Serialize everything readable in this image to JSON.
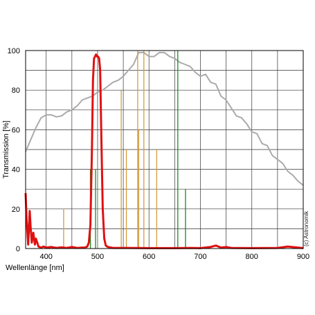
{
  "chart_data": {
    "type": "line",
    "title": "",
    "xlabel": "Wellenlänge [nm]",
    "ylabel": "Transmission [%]",
    "xlim": [
      360,
      900
    ],
    "ylim": [
      0,
      100
    ],
    "x_ticks": [
      400,
      500,
      600,
      700,
      800,
      900
    ],
    "y_ticks": [
      0,
      20,
      40,
      60,
      80,
      100
    ],
    "grid": true,
    "credit": "(c) Astronomik",
    "colors": {
      "filter": "#e01010",
      "reference": "#aaaaaa",
      "lines_green": "#1a8a1a",
      "lines_orange": "#d89a3a",
      "grid": "#333333"
    },
    "series": [
      {
        "role": "reference",
        "x": [
          360,
          370,
          380,
          390,
          400,
          410,
          420,
          430,
          440,
          450,
          460,
          470,
          480,
          490,
          500,
          510,
          520,
          530,
          540,
          550,
          560,
          570,
          580,
          590,
          600,
          610,
          620,
          630,
          640,
          650,
          660,
          670,
          680,
          690,
          700,
          710,
          720,
          730,
          740,
          750,
          760,
          770,
          780,
          790,
          800,
          810,
          820,
          830,
          840,
          850,
          860,
          870,
          880,
          890,
          900
        ],
        "y": [
          49,
          55,
          61,
          66,
          67.5,
          67.5,
          66.5,
          67,
          69,
          70,
          72,
          75,
          76,
          77,
          79,
          80,
          82,
          84,
          85,
          87,
          90,
          93,
          99,
          99,
          97,
          97,
          99,
          99,
          97,
          96,
          94,
          93,
          92,
          89,
          87,
          88,
          84,
          83,
          77,
          75,
          71,
          67,
          66,
          63,
          59,
          58,
          53,
          52,
          47,
          45,
          43,
          39,
          37,
          34,
          32
        ]
      },
      {
        "role": "filter",
        "x": [
          360,
          362,
          365,
          368,
          370,
          372,
          375,
          378,
          380,
          385,
          390,
          395,
          400,
          410,
          420,
          430,
          440,
          450,
          460,
          470,
          475,
          480,
          483,
          486,
          489,
          491,
          493,
          495,
          497,
          499,
          501,
          503,
          505,
          507,
          510,
          513,
          516,
          520,
          530,
          560,
          600,
          650,
          680,
          700,
          720,
          730,
          740,
          750,
          760,
          800,
          850,
          870,
          900
        ],
        "y": [
          28,
          14,
          2,
          19,
          10,
          3,
          8,
          2,
          5,
          1,
          0.5,
          1,
          0.5,
          0.8,
          0.3,
          0.6,
          0.3,
          0.8,
          0.3,
          0.5,
          0.5,
          1,
          3,
          12,
          50,
          85,
          96,
          97,
          98,
          97,
          97,
          96,
          90,
          60,
          20,
          5,
          1.5,
          0.8,
          0.3,
          0.3,
          0.2,
          0.2,
          0.3,
          0.2,
          0.8,
          1.5,
          0.5,
          0.8,
          0.3,
          0.2,
          0.3,
          1,
          0.2
        ]
      }
    ],
    "spectral_lines": [
      {
        "x": 434,
        "y": 20,
        "color": "orange"
      },
      {
        "x": 486,
        "y": 40,
        "color": "green"
      },
      {
        "x": 496,
        "y": 40,
        "color": "green"
      },
      {
        "x": 546,
        "y": 80,
        "color": "orange"
      },
      {
        "x": 556,
        "y": 50,
        "color": "orange"
      },
      {
        "x": 578,
        "y": 100,
        "color": "orange"
      },
      {
        "x": 580,
        "y": 60,
        "color": "orange"
      },
      {
        "x": 590,
        "y": 100,
        "color": "orange"
      },
      {
        "x": 615,
        "y": 50,
        "color": "orange"
      },
      {
        "x": 656,
        "y": 100,
        "color": "green"
      },
      {
        "x": 671,
        "y": 30,
        "color": "green"
      }
    ]
  }
}
